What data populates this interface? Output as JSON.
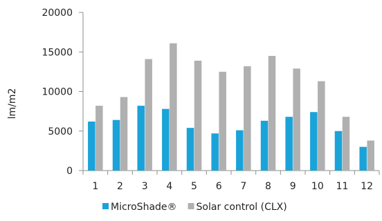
{
  "chart_data": {
    "type": "bar",
    "categories": [
      "1",
      "2",
      "3",
      "4",
      "5",
      "6",
      "7",
      "8",
      "9",
      "10",
      "11",
      "12"
    ],
    "series": [
      {
        "name": "MicroShade®",
        "color": "#1aa3d9",
        "values": [
          6200,
          6400,
          8200,
          7800,
          5400,
          4700,
          5100,
          6300,
          6800,
          7400,
          5000,
          3000
        ]
      },
      {
        "name": "Solar control (CLX)",
        "color": "#b0b0b0",
        "values": [
          8200,
          9300,
          14100,
          16100,
          13900,
          12500,
          13200,
          14500,
          12900,
          11300,
          6800,
          3800
        ]
      }
    ],
    "title": "",
    "xlabel": "",
    "ylabel": "lm/m2",
    "ylim": [
      0,
      20000
    ],
    "yticks": [
      0,
      5000,
      10000,
      15000,
      20000
    ],
    "grid": false,
    "legend_position": "bottom"
  }
}
